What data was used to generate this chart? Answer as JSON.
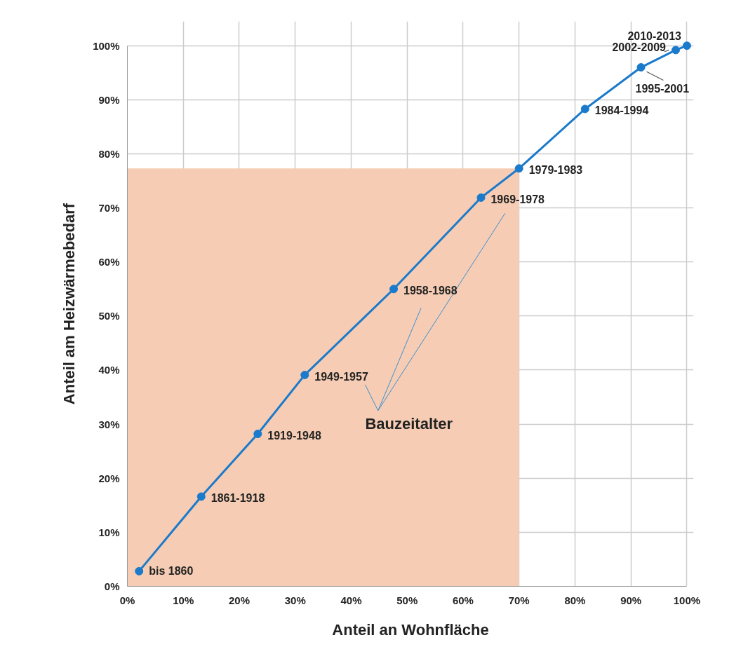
{
  "chart_data": {
    "type": "line",
    "xlabel": "Anteil an Wohnfläche",
    "ylabel": "Anteil am Heizwärmebedarf",
    "xlim": [
      0,
      100
    ],
    "ylim": [
      0,
      100
    ],
    "xticks": [
      {
        "value": 0,
        "label": "0%"
      },
      {
        "value": 10,
        "label": "10%"
      },
      {
        "value": 20,
        "label": "20%"
      },
      {
        "value": 30,
        "label": "30%"
      },
      {
        "value": 40,
        "label": "40%"
      },
      {
        "value": 50,
        "label": "50%"
      },
      {
        "value": 60,
        "label": "60%"
      },
      {
        "value": 70,
        "label": "70%"
      },
      {
        "value": 80,
        "label": "80%"
      },
      {
        "value": 90,
        "label": "90%"
      },
      {
        "value": 100,
        "label": "100%"
      }
    ],
    "yticks": [
      {
        "value": 0,
        "label": "0%"
      },
      {
        "value": 10,
        "label": "10%"
      },
      {
        "value": 20,
        "label": "20%"
      },
      {
        "value": 30,
        "label": "30%"
      },
      {
        "value": 40,
        "label": "40%"
      },
      {
        "value": 50,
        "label": "50%"
      },
      {
        "value": 60,
        "label": "60%"
      },
      {
        "value": 70,
        "label": "70%"
      },
      {
        "value": 80,
        "label": "80%"
      },
      {
        "value": 90,
        "label": "90%"
      },
      {
        "value": 100,
        "label": "100%"
      }
    ],
    "grid": true,
    "series": [
      {
        "type": "area",
        "color": "#f6cdb4",
        "x": [
          0,
          70
        ],
        "values": [
          77.3,
          77.3
        ]
      },
      {
        "color": "#1a7acb",
        "marker": "circle",
        "line_style": "solid",
        "x": [
          2.1,
          13.2,
          23.3,
          31.7,
          47.6,
          63.2,
          70,
          81.8,
          91.8,
          98.0,
          100
        ],
        "values": [
          2.8,
          16.6,
          28.2,
          39.1,
          55.0,
          71.9,
          77.3,
          88.3,
          96.0,
          99.2,
          100
        ]
      }
    ],
    "annotations": [
      {
        "text": "bis 1860",
        "x": 2.1,
        "y": 2.8
      },
      {
        "text": "1861-1918",
        "x": 13.2,
        "y": 16.6
      },
      {
        "text": "1919-1948",
        "x": 23.3,
        "y": 28.2
      },
      {
        "text": "1949-1957",
        "x": 31.7,
        "y": 39.1
      },
      {
        "text": "1958-1968",
        "x": 47.6,
        "y": 55.0
      },
      {
        "text": "1969-1978",
        "x": 63.2,
        "y": 71.9
      },
      {
        "text": "1979-1983",
        "x": 70,
        "y": 77.3
      },
      {
        "text": "1984-1994",
        "x": 81.8,
        "y": 88.3
      },
      {
        "text": "1995-2001",
        "x": 91.8,
        "y": 96.0
      },
      {
        "text": "2002-2009",
        "x": 98.0,
        "y": 99.2
      },
      {
        "text": "2010-2013",
        "x": 100,
        "y": 100
      },
      "Bauzeitalter"
    ]
  }
}
